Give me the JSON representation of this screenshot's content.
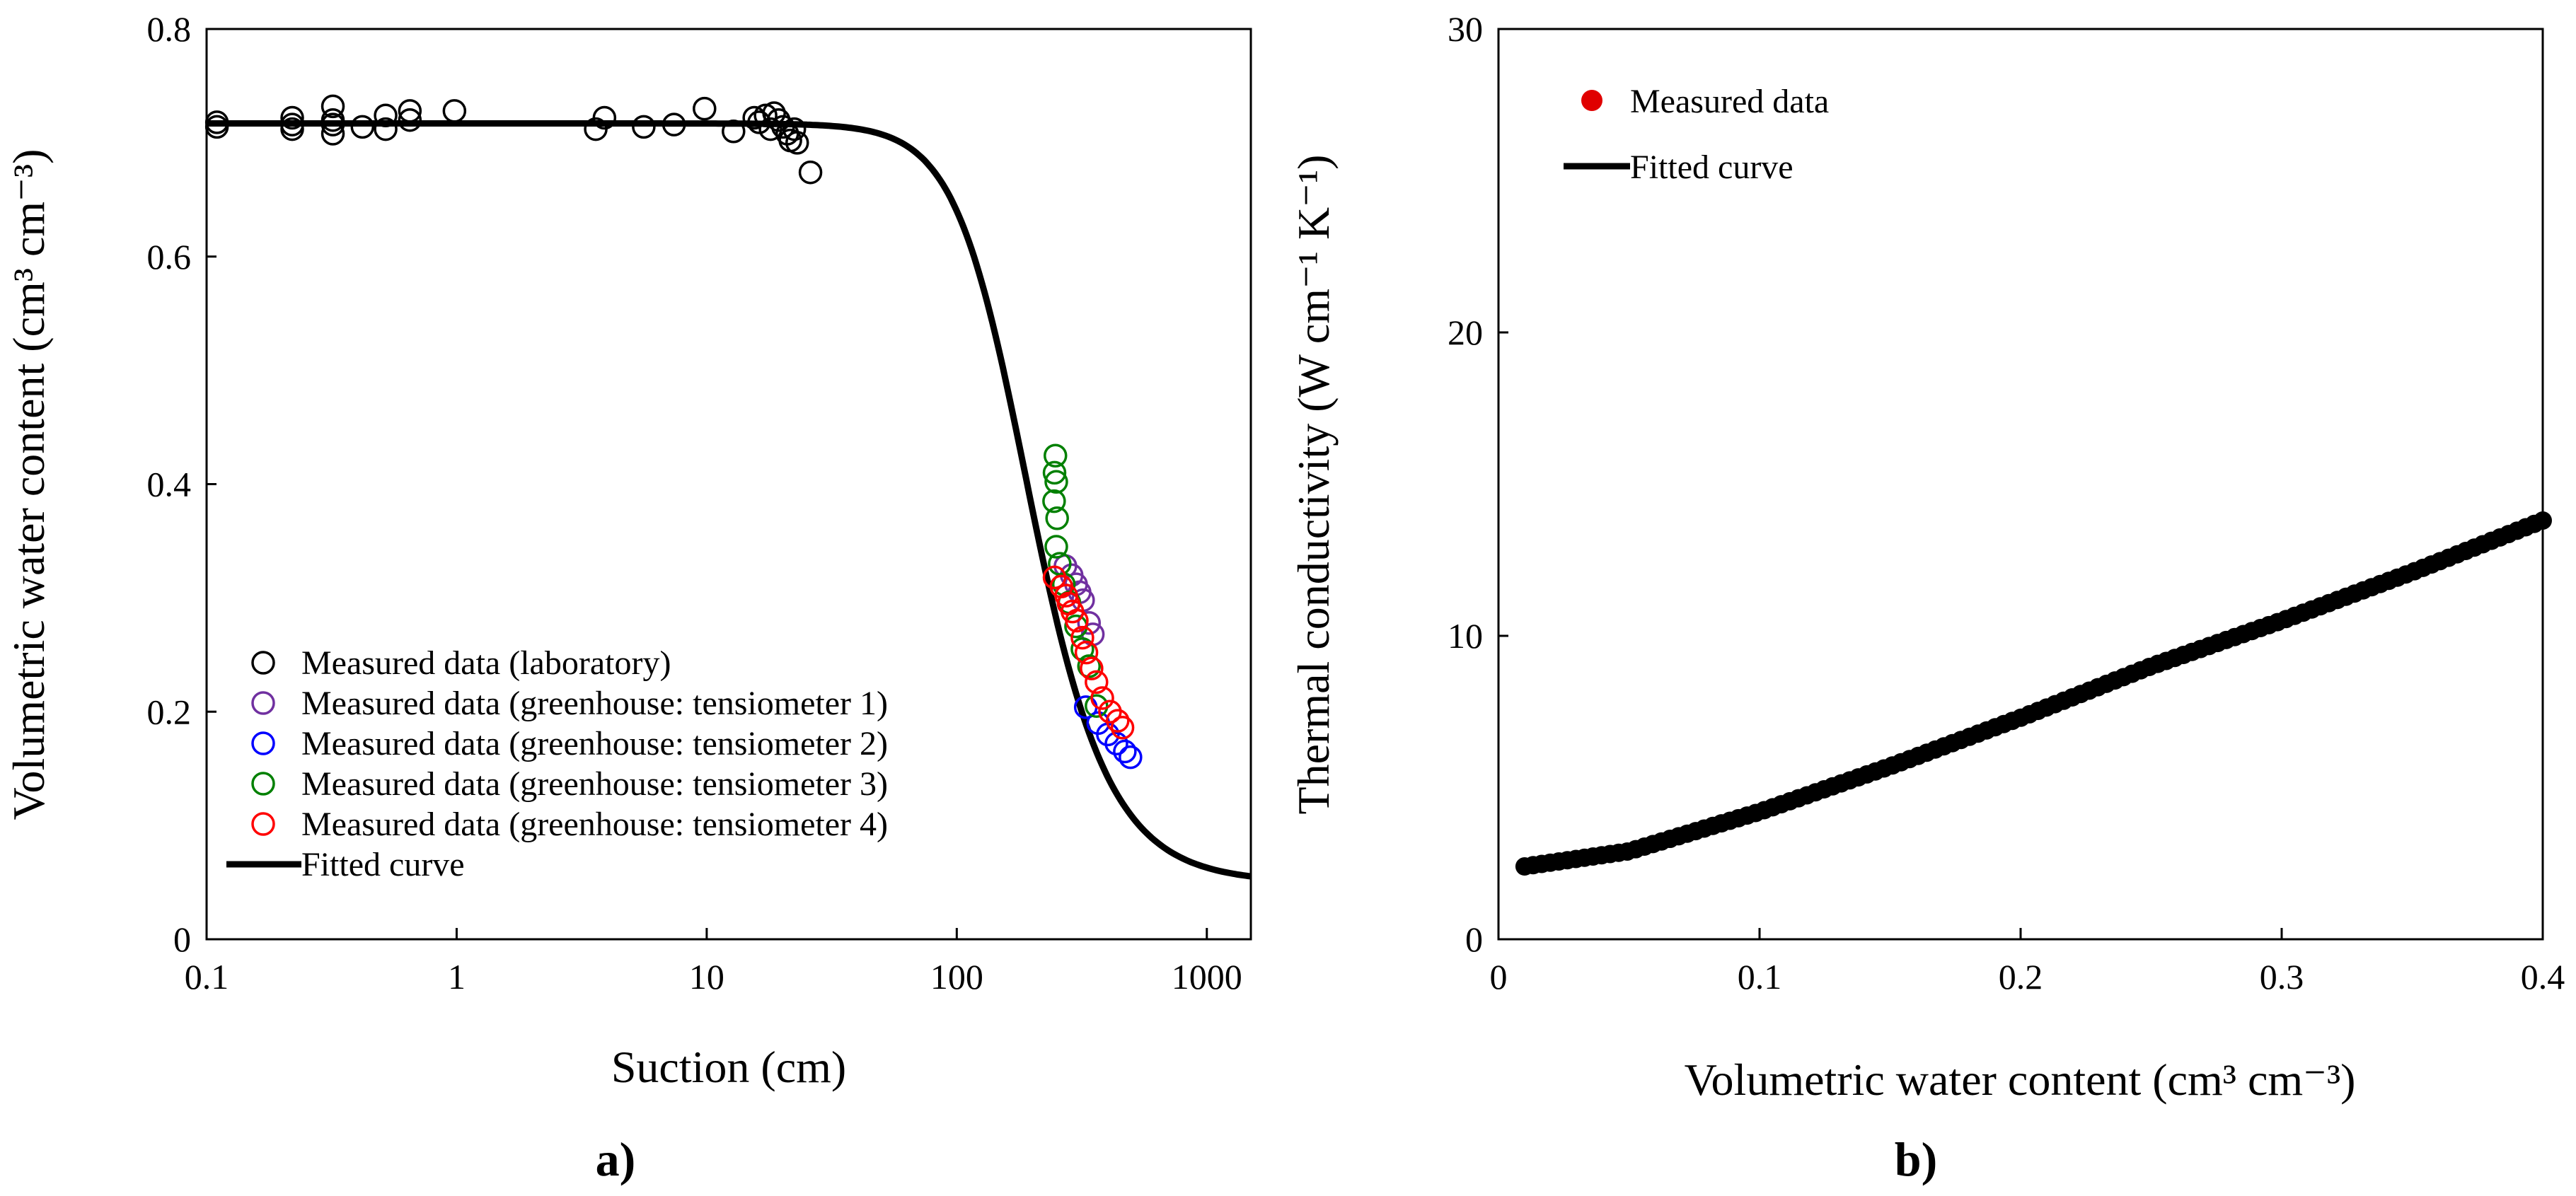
{
  "figure": {
    "panel_a_label": "a)",
    "panel_b_label": "b)"
  },
  "chart_data": [
    {
      "type": "scatter",
      "title": "",
      "xlabel": "Suction (cm)",
      "ylabel": "Volumetric water content (cm³ cm⁻³)",
      "xscale": "log",
      "xlim": [
        0.1,
        1500
      ],
      "ylim": [
        0,
        0.8
      ],
      "xticks": [
        0.1,
        1,
        10,
        100,
        1000
      ],
      "xtick_labels": [
        "0.1",
        "1",
        "10",
        "100",
        "1000"
      ],
      "yticks": [
        0,
        0.2,
        0.4,
        0.6,
        0.8
      ],
      "ytick_labels": [
        "0",
        "0.2",
        "0.4",
        "0.6",
        "0.8"
      ],
      "legend_position": "bottom-left",
      "series": [
        {
          "name": "Measured data (laboratory)",
          "color": "#000000",
          "marker": "open-circle",
          "points": [
            [
              0.11,
              0.718
            ],
            [
              0.11,
              0.714
            ],
            [
              0.22,
              0.722
            ],
            [
              0.22,
              0.716
            ],
            [
              0.22,
              0.712
            ],
            [
              0.32,
              0.732
            ],
            [
              0.32,
              0.72
            ],
            [
              0.32,
              0.716
            ],
            [
              0.32,
              0.708
            ],
            [
              0.42,
              0.714
            ],
            [
              0.52,
              0.724
            ],
            [
              0.52,
              0.712
            ],
            [
              0.65,
              0.728
            ],
            [
              0.65,
              0.72
            ],
            [
              0.98,
              0.728
            ],
            [
              3.6,
              0.712
            ],
            [
              3.9,
              0.722
            ],
            [
              5.6,
              0.714
            ],
            [
              7.4,
              0.716
            ],
            [
              9.8,
              0.73
            ],
            [
              12.8,
              0.71
            ],
            [
              15.5,
              0.722
            ],
            [
              16.2,
              0.718
            ],
            [
              17.2,
              0.724
            ],
            [
              18.0,
              0.712
            ],
            [
              18.6,
              0.726
            ],
            [
              19.4,
              0.72
            ],
            [
              20.2,
              0.714
            ],
            [
              21.0,
              0.708
            ],
            [
              21.6,
              0.702
            ],
            [
              22.4,
              0.712
            ],
            [
              23.0,
              0.7
            ],
            [
              26.0,
              0.674
            ]
          ]
        },
        {
          "name": "Measured data (greenhouse: tensiometer 1)",
          "color": "#7030A0",
          "marker": "open-circle",
          "points": [
            [
              272,
              0.328
            ],
            [
              288,
              0.32
            ],
            [
              300,
              0.312
            ],
            [
              310,
              0.305
            ],
            [
              320,
              0.298
            ],
            [
              338,
              0.278
            ],
            [
              350,
              0.268
            ]
          ]
        },
        {
          "name": "Measured data (greenhouse: tensiometer 2)",
          "color": "#0000FF",
          "marker": "open-circle",
          "points": [
            [
              328,
              0.204
            ],
            [
              368,
              0.19
            ],
            [
              402,
              0.18
            ],
            [
              435,
              0.172
            ],
            [
              470,
              0.165
            ],
            [
              495,
              0.16
            ]
          ]
        },
        {
          "name": "Measured data (greenhouse: tensiometer 3)",
          "color": "#008000",
          "marker": "open-circle",
          "points": [
            [
              248,
              0.425
            ],
            [
              246,
              0.41
            ],
            [
              250,
              0.402
            ],
            [
              245,
              0.385
            ],
            [
              252,
              0.37
            ],
            [
              250,
              0.345
            ],
            [
              258,
              0.33
            ],
            [
              268,
              0.312
            ],
            [
              282,
              0.296
            ],
            [
              300,
              0.275
            ],
            [
              318,
              0.255
            ],
            [
              338,
              0.24
            ],
            [
              362,
              0.205
            ]
          ]
        },
        {
          "name": "Measured data (greenhouse: tensiometer 4)",
          "color": "#FF0000",
          "marker": "open-circle",
          "points": [
            [
              246,
              0.318
            ],
            [
              262,
              0.31
            ],
            [
              274,
              0.302
            ],
            [
              280,
              0.295
            ],
            [
              290,
              0.288
            ],
            [
              302,
              0.28
            ],
            [
              318,
              0.265
            ],
            [
              330,
              0.252
            ],
            [
              346,
              0.238
            ],
            [
              362,
              0.226
            ],
            [
              382,
              0.212
            ],
            [
              410,
              0.2
            ],
            [
              440,
              0.192
            ],
            [
              460,
              0.186
            ]
          ]
        },
        {
          "name": "Fitted curve",
          "color": "#000000",
          "marker": "line",
          "model": "van Genuchten",
          "params": {
            "theta_r": 0.05,
            "theta_s": 0.717,
            "alpha": 0.006,
            "n": 3.2
          }
        }
      ]
    },
    {
      "type": "scatter",
      "title": "",
      "xlabel": "Volumetric water content (cm³ cm⁻³)",
      "ylabel": "Thermal conductivity (W cm⁻¹ K⁻¹)",
      "xlim": [
        0,
        0.4
      ],
      "ylim": [
        0,
        30
      ],
      "xticks": [
        0,
        0.1,
        0.2,
        0.3,
        0.4
      ],
      "xtick_labels": [
        "0",
        "0.1",
        "0.2",
        "0.3",
        "0.4"
      ],
      "yticks": [
        0,
        10,
        20,
        30
      ],
      "ytick_labels": [
        "0",
        "10",
        "20",
        "30"
      ],
      "legend_position": "top-left",
      "series": [
        {
          "name": "Measured data",
          "color": "#E00000",
          "marker": "filled-circle",
          "x_range": [
            0.01,
            0.4
          ],
          "points_count": 120,
          "y_at_x": [
            [
              0.01,
              2.4
            ],
            [
              0.05,
              2.9
            ],
            [
              0.1,
              4.2
            ],
            [
              0.15,
              5.7
            ],
            [
              0.2,
              7.3
            ],
            [
              0.25,
              9.0
            ],
            [
              0.3,
              10.5
            ],
            [
              0.35,
              12.1
            ],
            [
              0.4,
              13.8
            ]
          ]
        },
        {
          "name": "Fitted curve",
          "color": "#000000",
          "marker": "line",
          "y_at_x": [
            [
              0.01,
              2.4
            ],
            [
              0.05,
              2.9
            ],
            [
              0.1,
              4.2
            ],
            [
              0.15,
              5.7
            ],
            [
              0.2,
              7.3
            ],
            [
              0.25,
              9.0
            ],
            [
              0.3,
              10.5
            ],
            [
              0.35,
              12.1
            ],
            [
              0.4,
              13.8
            ]
          ]
        }
      ]
    }
  ]
}
